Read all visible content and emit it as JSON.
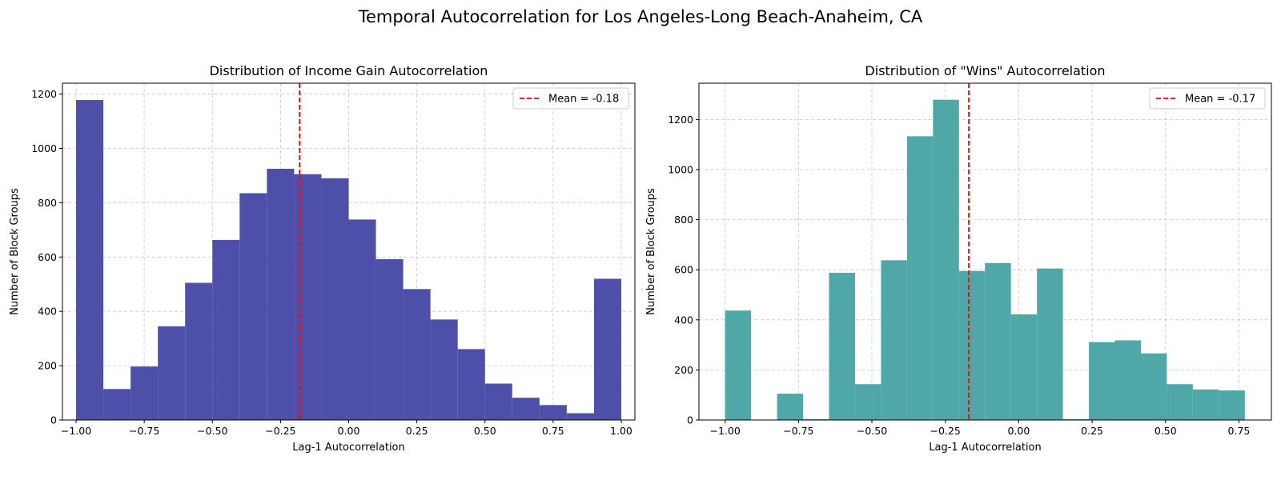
{
  "figure": {
    "title": "Temporal Autocorrelation for Los Angeles-Long Beach-Anaheim, CA"
  },
  "chart_data": [
    {
      "type": "bar",
      "title": "Distribution of Income Gain Autocorrelation",
      "xlabel": "Lag-1 Autocorrelation",
      "ylabel": "Number of Block Groups",
      "xlim": [
        -1.05,
        1.05
      ],
      "ylim": [
        0,
        1240
      ],
      "xticks": [
        -1.0,
        -0.75,
        -0.5,
        -0.25,
        0.0,
        0.25,
        0.5,
        0.75,
        1.0
      ],
      "xtick_labels": [
        "−1.00",
        "−0.75",
        "−0.50",
        "−0.25",
        "0.00",
        "0.25",
        "0.50",
        "0.75",
        "1.00"
      ],
      "yticks": [
        0,
        200,
        400,
        600,
        800,
        1000,
        1200
      ],
      "ytick_labels": [
        "0",
        "200",
        "400",
        "600",
        "800",
        "1000",
        "1200"
      ],
      "grid": true,
      "bar_color": "#4a4ba6",
      "bins": [
        {
          "x0": -1.0,
          "x1": -0.9,
          "value": 1178
        },
        {
          "x0": -0.9,
          "x1": -0.8,
          "value": 114
        },
        {
          "x0": -0.8,
          "x1": -0.7,
          "value": 197
        },
        {
          "x0": -0.7,
          "x1": -0.6,
          "value": 345
        },
        {
          "x0": -0.6,
          "x1": -0.5,
          "value": 505
        },
        {
          "x0": -0.5,
          "x1": -0.4,
          "value": 663
        },
        {
          "x0": -0.4,
          "x1": -0.3,
          "value": 835
        },
        {
          "x0": -0.3,
          "x1": -0.2,
          "value": 925
        },
        {
          "x0": -0.2,
          "x1": -0.1,
          "value": 905
        },
        {
          "x0": -0.1,
          "x1": 0.0,
          "value": 890
        },
        {
          "x0": 0.0,
          "x1": 0.1,
          "value": 738
        },
        {
          "x0": 0.1,
          "x1": 0.2,
          "value": 592
        },
        {
          "x0": 0.2,
          "x1": 0.3,
          "value": 482
        },
        {
          "x0": 0.3,
          "x1": 0.4,
          "value": 370
        },
        {
          "x0": 0.4,
          "x1": 0.5,
          "value": 261
        },
        {
          "x0": 0.5,
          "x1": 0.6,
          "value": 134
        },
        {
          "x0": 0.6,
          "x1": 0.7,
          "value": 82
        },
        {
          "x0": 0.7,
          "x1": 0.8,
          "value": 55
        },
        {
          "x0": 0.8,
          "x1": 0.9,
          "value": 25
        },
        {
          "x0": 0.9,
          "x1": 1.0,
          "value": 520
        }
      ],
      "mean": -0.18,
      "mean_color": "#ff0000",
      "legend": {
        "label": "Mean = -0.18",
        "placement": "upper right"
      }
    },
    {
      "type": "bar",
      "title": "Distribution of \"Wins\" Autocorrelation",
      "xlabel": "Lag-1 Autocorrelation",
      "ylabel": "Number of Block Groups",
      "xlim": [
        -1.089,
        0.8605
      ],
      "ylim": [
        0,
        1345
      ],
      "xticks": [
        -1.0,
        -0.75,
        -0.5,
        -0.25,
        0.0,
        0.25,
        0.5,
        0.75
      ],
      "xtick_labels": [
        "−1.00",
        "−0.75",
        "−0.50",
        "−0.25",
        "0.00",
        "0.25",
        "0.50",
        "0.75"
      ],
      "yticks": [
        0,
        200,
        400,
        600,
        800,
        1000,
        1200
      ],
      "ytick_labels": [
        "0",
        "200",
        "400",
        "600",
        "800",
        "1000",
        "1200"
      ],
      "grid": true,
      "bar_color": "#4ba5a5",
      "bins": [
        {
          "x0": -1.0,
          "x1": -0.9115,
          "value": 437
        },
        {
          "x0": -0.9115,
          "x1": -0.823,
          "value": 0
        },
        {
          "x0": -0.823,
          "x1": -0.7345,
          "value": 105
        },
        {
          "x0": -0.7345,
          "x1": -0.646,
          "value": 3
        },
        {
          "x0": -0.646,
          "x1": -0.5575,
          "value": 588
        },
        {
          "x0": -0.5575,
          "x1": -0.469,
          "value": 143
        },
        {
          "x0": -0.469,
          "x1": -0.3805,
          "value": 638
        },
        {
          "x0": -0.3805,
          "x1": -0.292,
          "value": 1133
        },
        {
          "x0": -0.292,
          "x1": -0.2035,
          "value": 1279
        },
        {
          "x0": -0.2035,
          "x1": -0.115,
          "value": 595
        },
        {
          "x0": -0.115,
          "x1": -0.0265,
          "value": 627
        },
        {
          "x0": -0.0265,
          "x1": 0.062,
          "value": 422
        },
        {
          "x0": 0.062,
          "x1": 0.1505,
          "value": 605
        },
        {
          "x0": 0.1505,
          "x1": 0.239,
          "value": 3
        },
        {
          "x0": 0.239,
          "x1": 0.3275,
          "value": 311
        },
        {
          "x0": 0.3275,
          "x1": 0.416,
          "value": 318
        },
        {
          "x0": 0.416,
          "x1": 0.5045,
          "value": 266
        },
        {
          "x0": 0.5045,
          "x1": 0.593,
          "value": 143
        },
        {
          "x0": 0.593,
          "x1": 0.6815,
          "value": 122
        },
        {
          "x0": 0.6815,
          "x1": 0.77,
          "value": 118
        }
      ],
      "mean": -0.17,
      "mean_color": "#ff0000",
      "legend": {
        "label": "Mean = -0.17",
        "placement": "upper right"
      }
    }
  ]
}
